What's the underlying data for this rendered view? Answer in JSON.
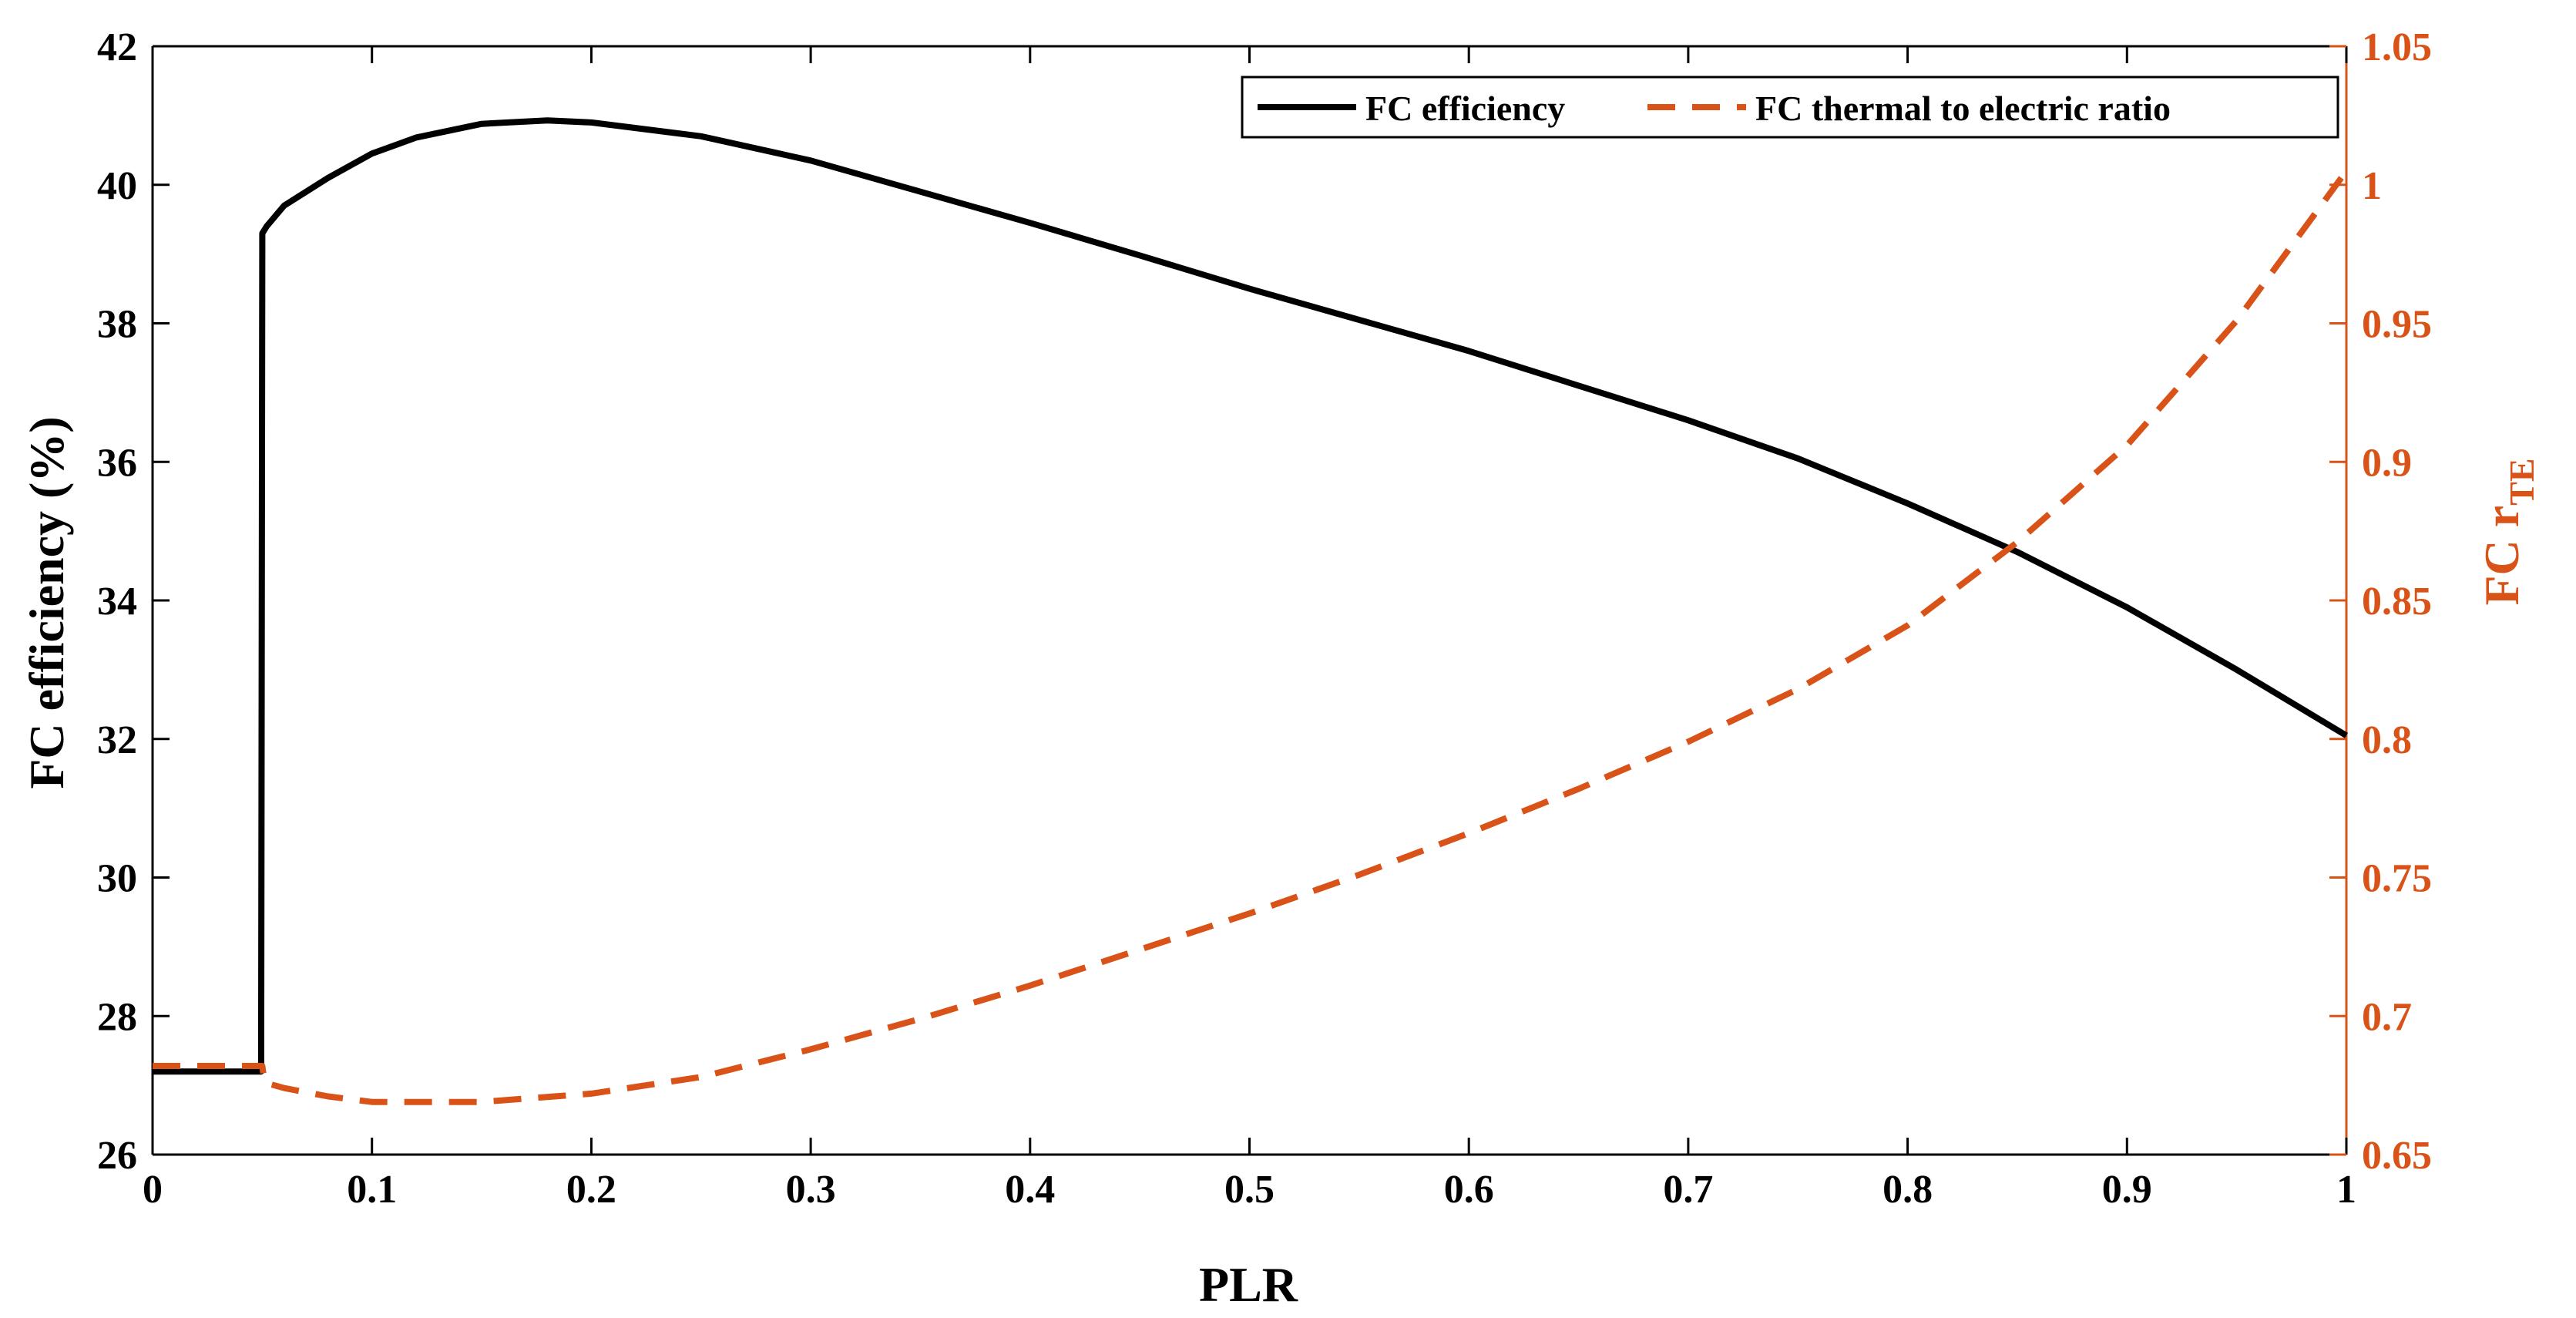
{
  "colors": {
    "left_axis": "#000000",
    "right_axis": "#d95319",
    "efficiency_line": "#000000",
    "ratio_line": "#d95319",
    "background": "#ffffff"
  },
  "chart_data": {
    "type": "line",
    "title": "",
    "xlabel": "PLR",
    "ylabel_left": "FC efficiency (%)",
    "ylabel_right": {
      "main": "FC r",
      "subscript": "TE"
    },
    "xlim": [
      0,
      1
    ],
    "ylim_left": [
      26,
      42
    ],
    "ylim_right": [
      0.65,
      1.05
    ],
    "x_ticks": [
      "0",
      "0.1",
      "0.2",
      "0.3",
      "0.4",
      "0.5",
      "0.6",
      "0.7",
      "0.8",
      "0.9",
      "1"
    ],
    "y_ticks_left": [
      "26",
      "28",
      "30",
      "32",
      "34",
      "36",
      "38",
      "40",
      "42"
    ],
    "y_ticks_right": [
      "0.65",
      "0.7",
      "0.75",
      "0.8",
      "0.85",
      "0.9",
      "0.95",
      "1",
      "1.05"
    ],
    "grid": false,
    "legend_position": "top-right",
    "series": [
      {
        "name": "FC efficiency",
        "axis": "left",
        "style": "solid",
        "x": [
          0,
          0.049,
          0.0495,
          0.05,
          0.052,
          0.06,
          0.08,
          0.1,
          0.12,
          0.15,
          0.18,
          0.2,
          0.25,
          0.3,
          0.35,
          0.4,
          0.45,
          0.5,
          0.55,
          0.6,
          0.65,
          0.7,
          0.75,
          0.8,
          0.85,
          0.9,
          0.95,
          1.0
        ],
        "y": [
          27.2,
          27.2,
          27.2,
          39.3,
          39.4,
          39.7,
          40.1,
          40.45,
          40.68,
          40.88,
          40.93,
          40.9,
          40.7,
          40.35,
          39.9,
          39.45,
          38.98,
          38.5,
          38.05,
          37.6,
          37.1,
          36.6,
          36.05,
          35.4,
          34.7,
          33.9,
          33.0,
          32.05
        ]
      },
      {
        "name": "FC thermal to electric ratio",
        "axis": "right",
        "style": "dashed",
        "x": [
          0,
          0.05,
          0.051,
          0.06,
          0.08,
          0.1,
          0.12,
          0.15,
          0.2,
          0.25,
          0.3,
          0.35,
          0.4,
          0.45,
          0.5,
          0.55,
          0.6,
          0.65,
          0.7,
          0.75,
          0.8,
          0.85,
          0.9,
          0.95,
          1.0
        ],
        "y": [
          0.682,
          0.682,
          0.676,
          0.674,
          0.671,
          0.669,
          0.669,
          0.669,
          0.672,
          0.678,
          0.688,
          0.699,
          0.711,
          0.724,
          0.737,
          0.751,
          0.766,
          0.782,
          0.799,
          0.818,
          0.841,
          0.871,
          0.906,
          0.951,
          1.005
        ]
      }
    ]
  }
}
